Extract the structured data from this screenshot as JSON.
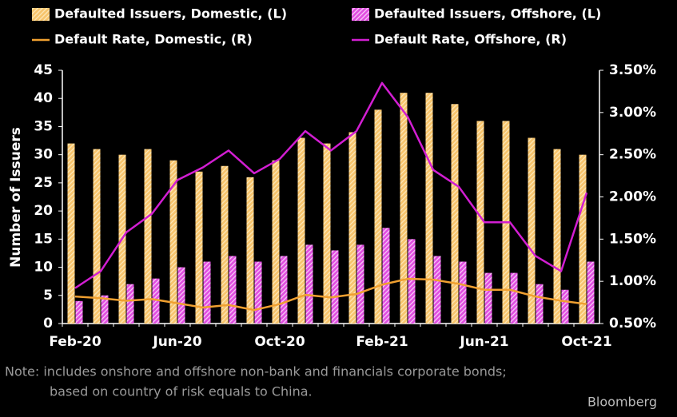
{
  "chart_data": {
    "type": "bar_line",
    "ylabel": "Number of Issuers",
    "categories": [
      "Feb-20",
      null,
      null,
      null,
      "Jun-20",
      null,
      null,
      null,
      "Oct-20",
      null,
      null,
      null,
      "Feb-21",
      null,
      null,
      null,
      "Jun-21",
      null,
      null,
      null,
      "Oct-21"
    ],
    "series": [
      {
        "name": "Defaulted Issuers, Domestic, (L)",
        "color": "#f7c46c",
        "kind": "bar",
        "axis": "y",
        "values": [
          32,
          31,
          30,
          31,
          29,
          27,
          28,
          26,
          29,
          33,
          32,
          34,
          38,
          41,
          41,
          39,
          36,
          36,
          33,
          31,
          30
        ]
      },
      {
        "name": "Defaulted Issuers, Offshore, (L)",
        "color": "#e04ee0",
        "kind": "bar",
        "axis": "y",
        "values": [
          4,
          5,
          7,
          8,
          10,
          11,
          12,
          11,
          12,
          14,
          13,
          14,
          17,
          15,
          12,
          11,
          9,
          9,
          7,
          6,
          11
        ]
      },
      {
        "name": "Default Rate, Domestic, (R)",
        "color": "#f0a030",
        "kind": "line",
        "axis": "y2",
        "values": [
          0.82,
          0.8,
          0.77,
          0.79,
          0.74,
          0.69,
          0.72,
          0.66,
          0.73,
          0.84,
          0.81,
          0.85,
          0.96,
          1.03,
          1.02,
          0.97,
          0.9,
          0.9,
          0.82,
          0.77,
          0.73
        ]
      },
      {
        "name": "Default Rate, Offshore, (R)",
        "color": "#d21ed2",
        "kind": "line",
        "axis": "y2",
        "values": [
          0.92,
          1.12,
          1.58,
          1.8,
          2.2,
          2.35,
          2.55,
          2.28,
          2.45,
          2.78,
          2.55,
          2.78,
          3.35,
          2.95,
          2.32,
          2.12,
          1.7,
          1.7,
          1.3,
          1.12,
          2.05
        ]
      }
    ],
    "ylim": [
      0,
      45
    ],
    "yticks": [
      0,
      5,
      10,
      15,
      20,
      25,
      30,
      35,
      40,
      45
    ],
    "y2lim": [
      0.5,
      3.5
    ],
    "y2ticks": [
      {
        "value": 0.5,
        "label": "0.50%"
      },
      {
        "value": 1.0,
        "label": "1.00%"
      },
      {
        "value": 1.5,
        "label": "1.50%"
      },
      {
        "value": 2.0,
        "label": "2.00%"
      },
      {
        "value": 2.5,
        "label": "2.50%"
      },
      {
        "value": 3.0,
        "label": "3.00%"
      },
      {
        "value": 3.5,
        "label": "3.50%"
      }
    ],
    "notes": [
      "Note: includes onshore and offshore non-bank and financials corporate bonds;",
      "based on country of risk equals to China."
    ],
    "source": "Bloomberg"
  }
}
